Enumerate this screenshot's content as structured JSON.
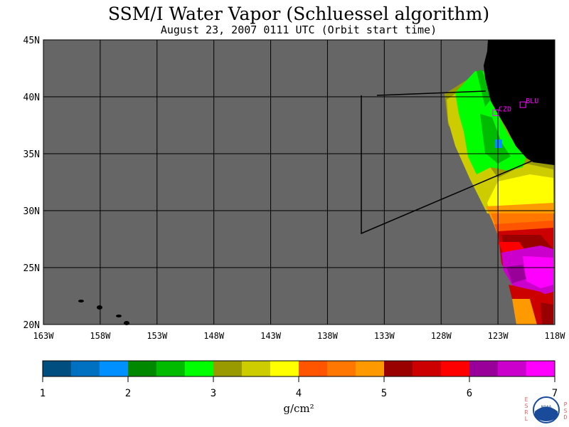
{
  "header": {
    "title": "SSM/I Water Vapor (Schluessel algorithm)",
    "subtitle": "August 23, 2007  0111 UTC  (Orbit start time)"
  },
  "map": {
    "lat_labels": [
      "45N",
      "40N",
      "35N",
      "30N",
      "25N",
      "20N"
    ],
    "lon_labels": [
      "163W",
      "158W",
      "153W",
      "148W",
      "143W",
      "138W",
      "133W",
      "128W",
      "123W",
      "118W"
    ],
    "lat_range": [
      20,
      45
    ],
    "lon_range": [
      -163,
      -118
    ],
    "stations": [
      {
        "id": "CZD",
        "lat": 38.6,
        "lon": -123.2
      },
      {
        "id": "BLU",
        "lat": 39.3,
        "lon": -120.8
      }
    ]
  },
  "colorbar": {
    "colors": [
      "#004d80",
      "#0070c0",
      "#0090ff",
      "#008800",
      "#00bb00",
      "#00ff00",
      "#999900",
      "#cccc00",
      "#ffff00",
      "#ff5500",
      "#ff7700",
      "#ff9900",
      "#990000",
      "#cc0000",
      "#ff0000",
      "#990099",
      "#cc00cc",
      "#ff00ff"
    ],
    "tick_labels": [
      "1",
      "2",
      "3",
      "4",
      "5",
      "6",
      "7"
    ],
    "unit_label": "g/cm²"
  },
  "logo": {
    "left_letters": "ESRL",
    "right_letters": "PSD",
    "center_text": "NOAA"
  },
  "colors": {
    "ocean": "#666666",
    "land": "#000000",
    "station": "#ff00ff"
  }
}
